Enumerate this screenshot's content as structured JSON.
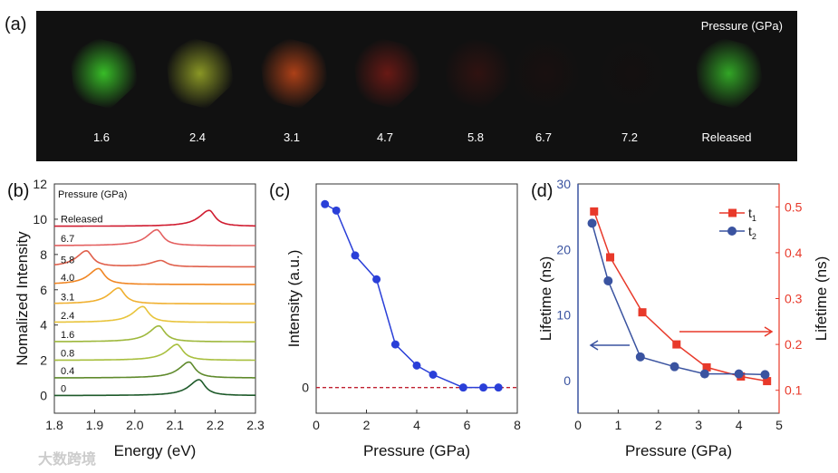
{
  "panel_a": {
    "label": "(a)",
    "title": "Pressure (GPa)",
    "samples": [
      {
        "label": "1.6",
        "color": "#3ccf2a",
        "glow": 0.9
      },
      {
        "label": "2.4",
        "color": "#a8b82a",
        "glow": 0.8
      },
      {
        "label": "3.1",
        "color": "#e0501a",
        "glow": 0.75
      },
      {
        "label": "4.7",
        "color": "#b02018",
        "glow": 0.55
      },
      {
        "label": "5.8",
        "color": "#6a1410",
        "glow": 0.35
      },
      {
        "label": "6.7",
        "color": "#3a0c0a",
        "glow": 0.2
      },
      {
        "label": "7.2",
        "color": "#2a0a0a",
        "glow": 0.12
      },
      {
        "label": "Released",
        "color": "#38c02a",
        "glow": 0.85
      }
    ]
  },
  "chart_data": [
    {
      "type": "line",
      "panel_label": "(b)",
      "xlabel": "Energy (eV)",
      "ylabel": "Nomalized Intensity",
      "xlim": [
        1.8,
        2.3
      ],
      "ylim": [
        -1,
        12
      ],
      "xticks": [
        "1.8",
        "1.9",
        "2.0",
        "2.1",
        "2.2",
        "2.3"
      ],
      "yticks": [
        "0",
        "2",
        "4",
        "6",
        "8",
        "10",
        "12"
      ],
      "legend_title": "Pressure (GPa)",
      "series": [
        {
          "name": "0",
          "offset": 0,
          "peaks": [
            [
              2.16,
              0.9
            ]
          ],
          "color": "#1e5a2a"
        },
        {
          "name": "0.4",
          "offset": 1,
          "peaks": [
            [
              2.135,
              0.9
            ]
          ],
          "color": "#5f8a2c"
        },
        {
          "name": "0.8",
          "offset": 2,
          "peaks": [
            [
              2.105,
              0.9
            ]
          ],
          "color": "#a8bf3e"
        },
        {
          "name": "1.6",
          "offset": 3.05,
          "peaks": [
            [
              2.06,
              0.9
            ]
          ],
          "color": "#9eb83c"
        },
        {
          "name": "2.4",
          "offset": 4.15,
          "peaks": [
            [
              2.02,
              0.9
            ]
          ],
          "color": "#e8c43c"
        },
        {
          "name": "3.1",
          "offset": 5.2,
          "peaks": [
            [
              1.96,
              0.9
            ]
          ],
          "color": "#f0b030"
        },
        {
          "name": "4.0",
          "offset": 6.3,
          "peaks": [
            [
              1.91,
              0.9
            ]
          ],
          "color": "#f08624"
        },
        {
          "name": "5.8",
          "offset": 7.3,
          "peaks": [
            [
              1.88,
              0.9
            ],
            [
              2.065,
              0.35
            ]
          ],
          "color": "#e0604c"
        },
        {
          "name": "6.7",
          "offset": 8.5,
          "peaks": [
            [
              2.055,
              0.9
            ]
          ],
          "color": "#e46060"
        },
        {
          "name": "Released",
          "offset": 9.6,
          "peaks": [
            [
              2.185,
              0.9
            ]
          ],
          "color": "#d01c30"
        }
      ]
    },
    {
      "type": "line",
      "panel_label": "(c)",
      "xlabel": "Pressure (GPa)",
      "ylabel": "Intensity (a.u.)",
      "xlim": [
        0,
        8
      ],
      "ylim": [
        -0.14,
        1.11
      ],
      "xticks": [
        "0",
        "2",
        "4",
        "6",
        "8"
      ],
      "yticks": [
        "0"
      ],
      "x": [
        0.35,
        0.8,
        1.55,
        2.4,
        3.15,
        4.0,
        4.65,
        5.85,
        6.65,
        7.25
      ],
      "y": [
        1.0,
        0.965,
        0.72,
        0.59,
        0.235,
        0.12,
        0.07,
        0,
        0,
        0
      ],
      "color": "#2a3fd8",
      "reference_line": {
        "y": 0,
        "color": "#c02030",
        "style": "dashed"
      }
    },
    {
      "type": "line",
      "panel_label": "(d)",
      "xlabel": "Pressure (GPa)",
      "ylabel_left": "Lifetime (ns)",
      "ylabel_right": "Lifetime (ns)",
      "xlim": [
        0,
        5
      ],
      "ylim_left": [
        -5,
        30
      ],
      "ylim_right": [
        0.05,
        0.55
      ],
      "xticks": [
        "0",
        "1",
        "2",
        "3",
        "4",
        "5"
      ],
      "yticks_left": [
        "0",
        "10",
        "20",
        "30"
      ],
      "yticks_right": [
        "0.1",
        "0.2",
        "0.3",
        "0.4",
        "0.5"
      ],
      "legend_placement": "top-right",
      "series": [
        {
          "name": "t",
          "sub": "1",
          "axis": "right",
          "marker": "square",
          "color": "#e8392a",
          "x": [
            0.4,
            0.8,
            1.6,
            2.45,
            3.2,
            4.05,
            4.7
          ],
          "y": [
            0.49,
            0.39,
            0.27,
            0.2,
            0.15,
            0.13,
            0.12
          ]
        },
        {
          "name": "t",
          "sub": "2",
          "axis": "left",
          "marker": "circle",
          "color": "#3a53a0",
          "x": [
            0.35,
            0.75,
            1.55,
            2.4,
            3.15,
            4.0,
            4.65
          ],
          "y": [
            24,
            15.2,
            3.6,
            2.1,
            1.0,
            1.0,
            0.9
          ]
        }
      ]
    }
  ],
  "watermark": "大数跨境"
}
